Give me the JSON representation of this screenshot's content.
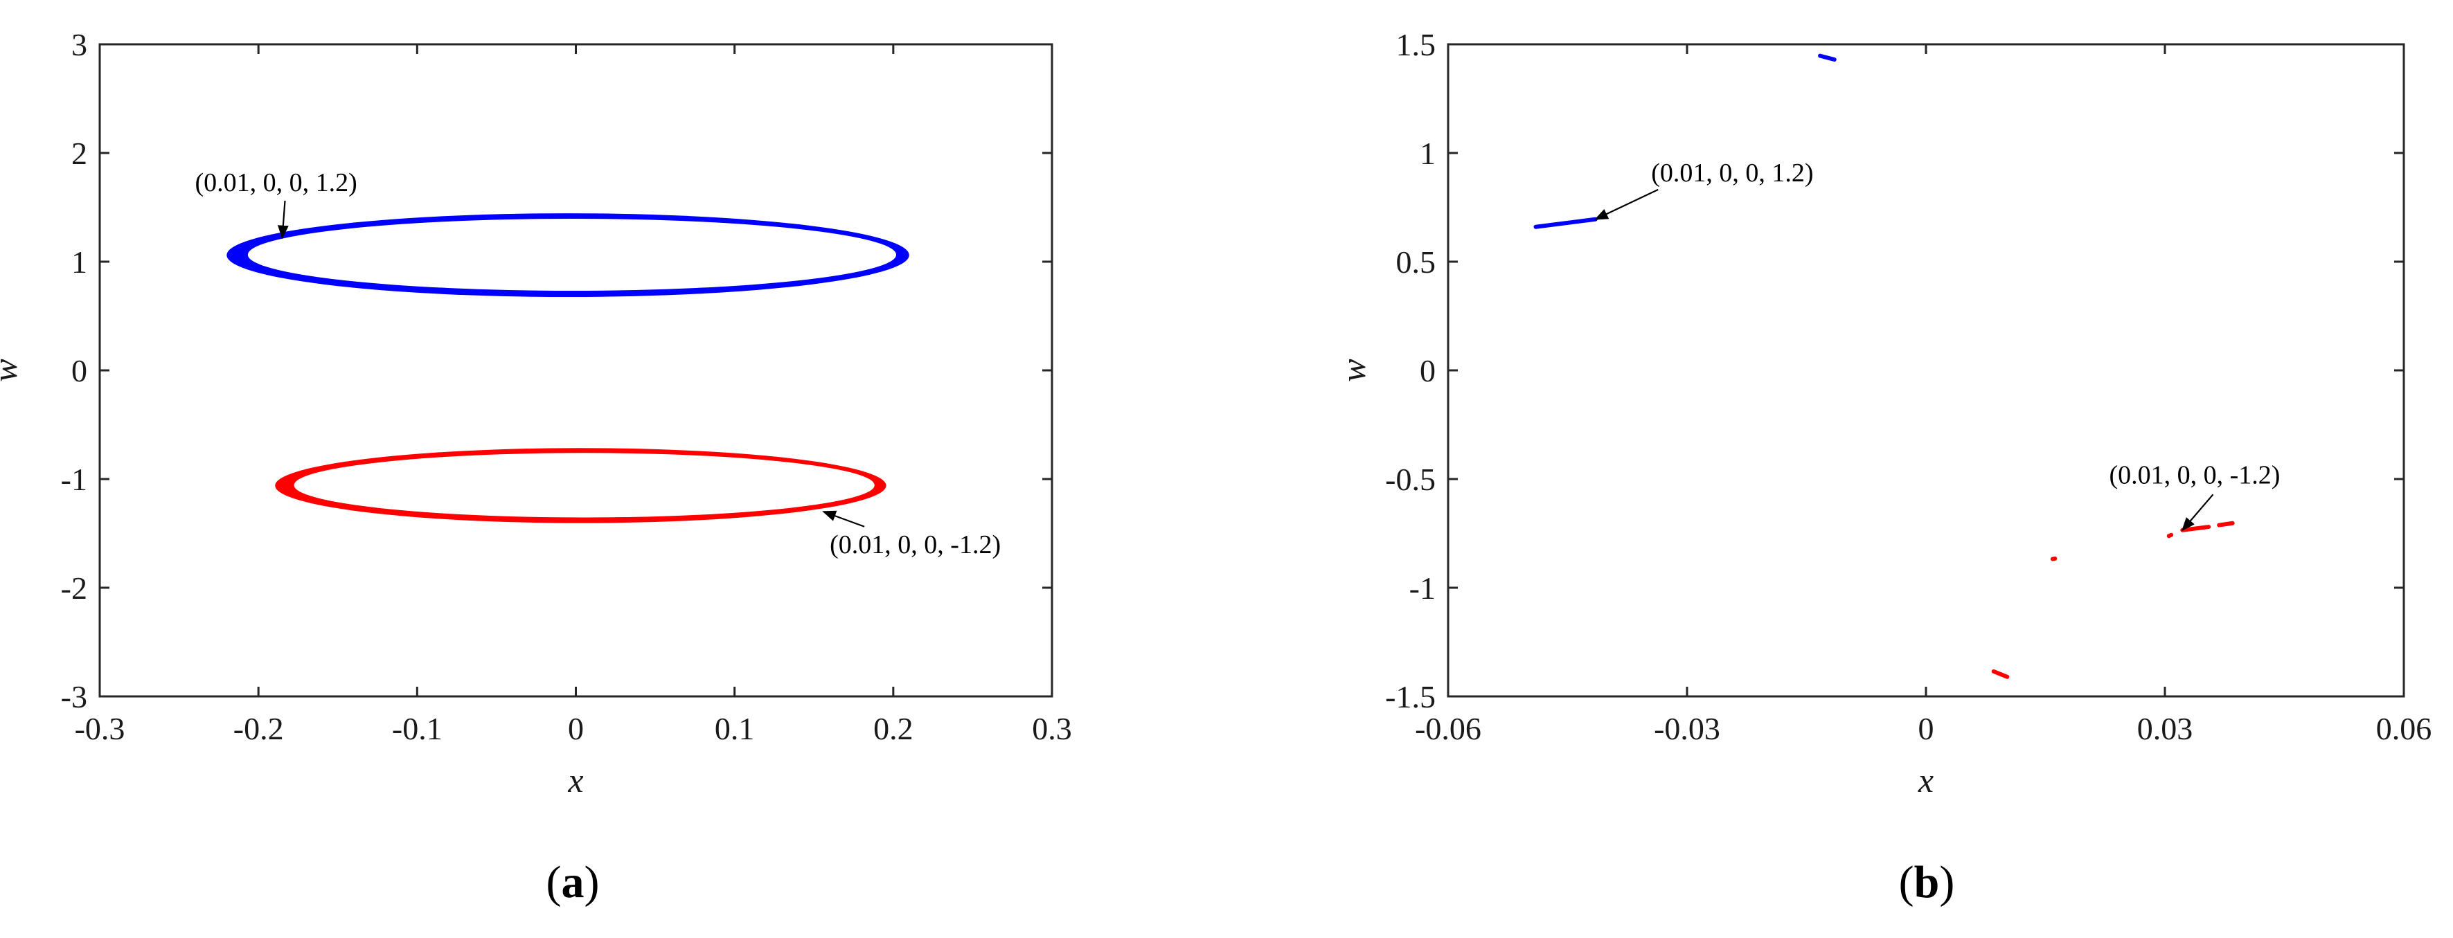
{
  "chart_data": [
    {
      "type": "scatter",
      "panel_label": "a",
      "xlabel": "x",
      "ylabel": "w",
      "xlim": [
        -0.3,
        0.3
      ],
      "ylim": [
        -3,
        3
      ],
      "xticks": [
        -0.3,
        -0.2,
        -0.1,
        0,
        0.1,
        0.2,
        0.3
      ],
      "yticks": [
        -3,
        -2,
        -1,
        0,
        1,
        2,
        3
      ],
      "xtick_labels": [
        "-0.3",
        "-0.2",
        "-0.1",
        "0",
        "0.1",
        "0.2",
        "0.3"
      ],
      "ytick_labels": [
        "-3",
        "-2",
        "-1",
        "0",
        "1",
        "2",
        "3"
      ],
      "grid": false,
      "series": [
        {
          "color": "#0000ff",
          "shape": "closed loop (ring)",
          "x_range": [
            -0.22,
            0.21
          ],
          "w_range": [
            0.66,
            1.43
          ],
          "center": [
            -0.005,
            1.06
          ]
        },
        {
          "color": "#ff0000",
          "shape": "closed loop (ring)",
          "x_range": [
            -0.19,
            0.195
          ],
          "w_range": [
            -1.4,
            -0.71
          ],
          "center": [
            0.003,
            -1.06
          ]
        }
      ],
      "annotations": [
        {
          "text": "(0.01, 0, 0, 1.2)",
          "arrow_to": [
            -0.185,
            1.22
          ],
          "text_at": [
            -0.24,
            1.65
          ]
        },
        {
          "text": "(0.01, 0, 0, -1.2)",
          "arrow_to": [
            0.156,
            -1.3
          ],
          "text_at": [
            0.16,
            -1.68
          ]
        }
      ]
    },
    {
      "type": "scatter",
      "panel_label": "b",
      "xlabel": "x",
      "ylabel": "w",
      "xlim": [
        -0.06,
        0.06
      ],
      "ylim": [
        -1.5,
        1.5
      ],
      "xticks": [
        -0.06,
        -0.03,
        0,
        0.03,
        0.06
      ],
      "yticks": [
        -1.5,
        -1,
        -0.5,
        0,
        0.5,
        1,
        1.5
      ],
      "xtick_labels": [
        "-0.06",
        "-0.03",
        "0",
        "0.03",
        "0.06"
      ],
      "ytick_labels": [
        "-1.5",
        "-1",
        "-0.5",
        "0",
        "0.5",
        "1",
        "1.5"
      ],
      "grid": false,
      "series": [
        {
          "color": "#0000ff",
          "segments": [
            [
              [
                -0.049,
                0.66
              ],
              [
                -0.0415,
                0.695
              ]
            ],
            [
              [
                -0.0133,
                1.447
              ],
              [
                -0.0115,
                1.43
              ]
            ]
          ]
        },
        {
          "color": "#ff0000",
          "segments": [
            [
              [
                0.0322,
                -0.735
              ],
              [
                0.0355,
                -0.72
              ]
            ],
            [
              [
                0.0368,
                -0.712
              ],
              [
                0.0385,
                -0.703
              ]
            ],
            [
              [
                0.0305,
                -0.762
              ],
              [
                0.0308,
                -0.757
              ]
            ],
            [
              [
                0.0159,
                -0.868
              ],
              [
                0.0162,
                -0.866
              ]
            ],
            [
              [
                0.0085,
                -1.385
              ],
              [
                0.0102,
                -1.41
              ]
            ]
          ]
        }
      ],
      "annotations": [
        {
          "text": "(0.01, 0, 0, 1.2)",
          "arrow_to": [
            -0.0415,
            0.695
          ],
          "text_at": [
            -0.0345,
            0.87
          ]
        },
        {
          "text": "(0.01, 0, 0, -1.2)",
          "arrow_to": [
            0.0322,
            -0.735
          ],
          "text_at": [
            0.023,
            -0.52
          ]
        }
      ]
    }
  ]
}
